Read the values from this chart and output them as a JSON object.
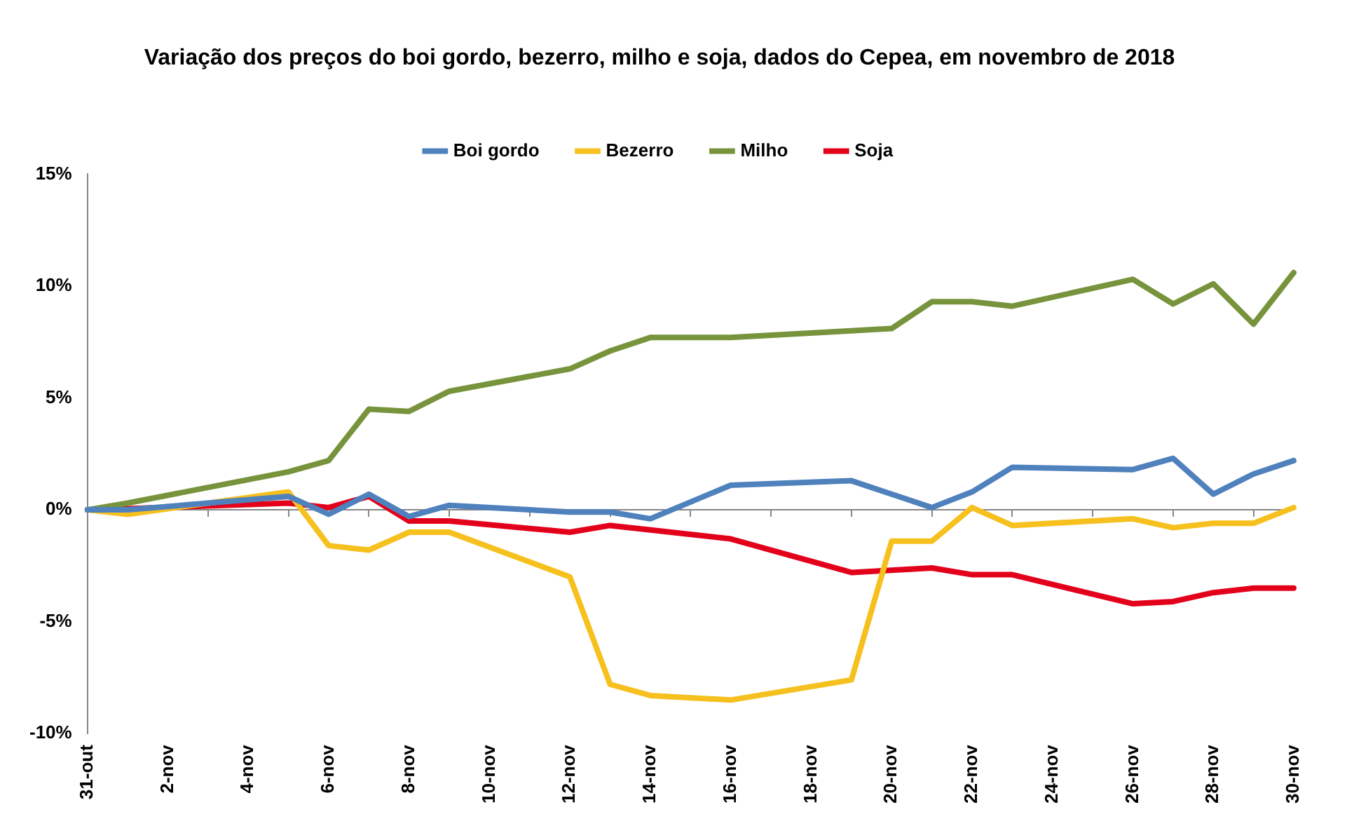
{
  "chart_data": {
    "type": "line",
    "title": "Variação dos preços do boi gordo, bezerro, milho e soja, dados do Cepea, em novembro de 2018",
    "categories": [
      "31-out",
      null,
      "2-nov",
      null,
      "4-nov",
      null,
      "6-nov",
      null,
      "8-nov",
      null,
      "10-nov",
      null,
      "12-nov",
      null,
      "14-nov",
      null,
      "16-nov",
      null,
      "18-nov",
      null,
      "20-nov",
      null,
      "22-nov",
      null,
      "24-nov",
      null,
      "26-nov",
      null,
      "28-nov",
      null,
      "30-nov"
    ],
    "series": [
      {
        "name": "Boi gordo",
        "color": "#4f81bd",
        "values": [
          0,
          0,
          null,
          null,
          null,
          0.6,
          -0.2,
          0.7,
          -0.3,
          0.2,
          null,
          null,
          -0.1,
          -0.1,
          -0.4,
          null,
          1.1,
          null,
          null,
          1.3,
          0.7,
          0.1,
          0.8,
          1.9,
          null,
          null,
          1.8,
          2.3,
          0.7,
          1.6,
          2.2
        ]
      },
      {
        "name": "Bezerro",
        "color": "#f6c01e",
        "values": [
          0,
          -0.2,
          null,
          null,
          null,
          0.8,
          -1.6,
          -1.8,
          -1.0,
          -1.0,
          null,
          null,
          -3.0,
          -7.8,
          -8.3,
          null,
          -8.5,
          null,
          null,
          -7.6,
          -1.4,
          -1.4,
          0.1,
          -0.7,
          null,
          null,
          -0.4,
          -0.8,
          -0.6,
          -0.6,
          0.1
        ]
      },
      {
        "name": "Milho",
        "color": "#77933c",
        "values": [
          0,
          0.3,
          null,
          null,
          null,
          1.7,
          2.2,
          4.5,
          4.4,
          5.3,
          null,
          null,
          6.3,
          7.1,
          7.7,
          null,
          7.7,
          null,
          null,
          8.0,
          8.1,
          9.3,
          9.3,
          9.1,
          null,
          null,
          10.3,
          9.2,
          10.1,
          8.3,
          10.6
        ]
      },
      {
        "name": "Soja",
        "color": "#e3001b",
        "values": [
          0,
          0.05,
          null,
          null,
          null,
          0.3,
          0.1,
          0.6,
          -0.5,
          -0.5,
          null,
          null,
          -1.0,
          -0.7,
          -0.9,
          null,
          -1.3,
          null,
          null,
          -2.8,
          -2.7,
          -2.6,
          -2.9,
          -2.9,
          null,
          null,
          -4.2,
          -4.1,
          -3.7,
          -3.5,
          -3.5
        ]
      }
    ],
    "ylim": [
      -10,
      15
    ],
    "yticks": [
      {
        "value": -10,
        "label": "-10%"
      },
      {
        "value": -5,
        "label": "-5%"
      },
      {
        "value": 0,
        "label": "0%"
      },
      {
        "value": 5,
        "label": "5%"
      },
      {
        "value": 10,
        "label": "10%"
      },
      {
        "value": 15,
        "label": "15%"
      }
    ],
    "ref_lines": [
      {
        "axis": "y",
        "value": 0,
        "color": "#868686"
      }
    ],
    "grid": false,
    "legend": "top",
    "marker": "none",
    "line_style": "solid"
  }
}
